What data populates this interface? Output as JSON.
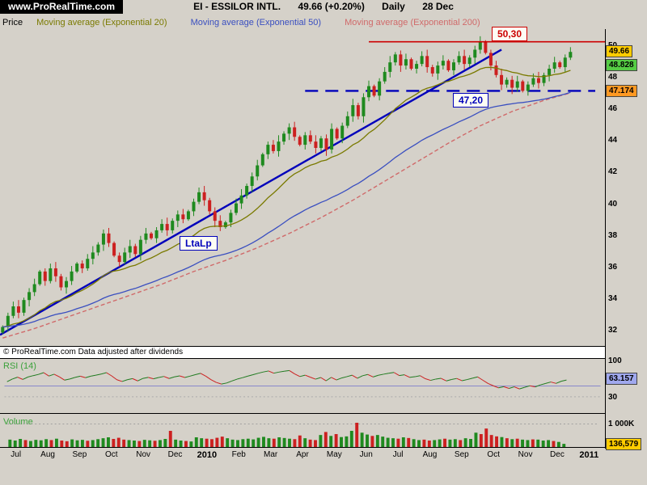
{
  "header": {
    "site": "www.ProRealTime.com",
    "instrument": "EI - ESSILOR INTL.",
    "quote": "49.66 (+0.20%)",
    "timeframe": "Daily",
    "date": "28 Dec"
  },
  "legend": {
    "pane_label": "Price",
    "items": [
      {
        "label": "Moving average (Exponential 20)",
        "color": "#7a7a00"
      },
      {
        "label": "Moving average (Exponential 50)",
        "color": "#3a4fc0"
      },
      {
        "label": "Moving average (Exponential 200)",
        "color": "#d06a6a"
      }
    ]
  },
  "annotations": {
    "resistance": {
      "label": "50,30",
      "color": "#cc0000"
    },
    "support": {
      "label": "47,20",
      "color": "#0000bb"
    },
    "trendline": {
      "label": "LtaLp",
      "color": "#0000bb"
    }
  },
  "copyright": "© ProRealTime.com  Data adjusted after dividends",
  "price_axis": {
    "ticks": [
      50,
      48,
      46,
      44,
      42,
      40,
      38,
      36,
      34,
      32
    ],
    "badges": [
      {
        "text": "49.66",
        "value": 49.66,
        "bg": "#ffcc00"
      },
      {
        "text": "48.828",
        "value": 48.828,
        "bg": "#55cc44"
      },
      {
        "text": "47.174",
        "value": 47.174,
        "bg": "#ff9922"
      }
    ]
  },
  "rsi": {
    "label": "RSI (14)",
    "axis_top": "100",
    "axis_low": "30",
    "badge": {
      "text": "63.157",
      "value": 63.157,
      "bg": "#a0a8ee"
    }
  },
  "volume": {
    "label": "Volume",
    "axis_label": "1 000K",
    "axis_value_k": 1000,
    "badge": {
      "text": "136,579",
      "value_k": 137,
      "bg": "#ffcc00"
    }
  },
  "x_axis": {
    "labels": [
      {
        "text": "Jul"
      },
      {
        "text": "Aug"
      },
      {
        "text": "Sep"
      },
      {
        "text": "Oct"
      },
      {
        "text": "Nov"
      },
      {
        "text": "Dec"
      },
      {
        "text": "2010",
        "bold": true
      },
      {
        "text": "Feb"
      },
      {
        "text": "Mar"
      },
      {
        "text": "Apr"
      },
      {
        "text": "May"
      },
      {
        "text": "Jun"
      },
      {
        "text": "Jul"
      },
      {
        "text": "Aug"
      },
      {
        "text": "Sep"
      },
      {
        "text": "Oct"
      },
      {
        "text": "Nov"
      },
      {
        "text": "Dec"
      },
      {
        "text": "2011",
        "bold": true
      }
    ]
  },
  "chart_data": {
    "type": "candlestick",
    "title": "EI - ESSILOR INTL. Daily, Jul 2009 - Dec 2010",
    "ylabel": "Price",
    "ylim": [
      31.1,
      51.1
    ],
    "candles_per_month": 6,
    "first_open": 31.95,
    "closes": [
      32.3,
      33.0,
      33.6,
      33.2,
      34.0,
      34.5,
      35.0,
      35.8,
      35.2,
      36.0,
      35.5,
      34.8,
      35.2,
      35.8,
      36.3,
      36.0,
      36.6,
      37.0,
      37.5,
      38.2,
      37.6,
      36.8,
      36.4,
      37.0,
      37.4,
      36.9,
      37.8,
      38.2,
      37.9,
      38.4,
      38.8,
      38.4,
      39.0,
      39.4,
      39.1,
      39.6,
      40.2,
      40.8,
      40.3,
      39.6,
      39.0,
      38.6,
      38.9,
      39.5,
      40.1,
      40.6,
      41.2,
      41.8,
      42.5,
      43.2,
      43.8,
      43.4,
      44.0,
      44.5,
      44.9,
      44.3,
      43.8,
      44.4,
      44.0,
      43.6,
      44.2,
      43.5,
      44.8,
      44.2,
      45.0,
      45.6,
      46.3,
      45.6,
      46.8,
      47.5,
      46.9,
      47.8,
      48.4,
      49.0,
      49.5,
      48.8,
      49.2,
      48.6,
      48.9,
      49.4,
      48.7,
      48.3,
      48.8,
      49.1,
      48.5,
      49.0,
      49.4,
      48.9,
      49.3,
      49.8,
      50.3,
      49.6,
      48.8,
      48.2,
      47.6,
      47.9,
      47.4,
      47.8,
      47.2,
      47.6,
      48.0,
      47.7,
      48.2,
      48.6,
      49.0,
      48.7,
      49.3,
      49.66
    ],
    "volumes_k": [
      320,
      280,
      350,
      300,
      260,
      310,
      290,
      340,
      300,
      360,
      280,
      250,
      330,
      290,
      310,
      270,
      300,
      340,
      380,
      420,
      350,
      400,
      320,
      300,
      280,
      260,
      310,
      290,
      270,
      300,
      350,
      700,
      320,
      280,
      260,
      240,
      420,
      380,
      360,
      340,
      400,
      450,
      380,
      320,
      300,
      340,
      360,
      330,
      400,
      440,
      380,
      360,
      420,
      390,
      360,
      340,
      500,
      380,
      320,
      300,
      520,
      650,
      480,
      560,
      430,
      460,
      700,
      1050,
      620,
      540,
      480,
      520,
      450,
      400,
      380,
      360,
      420,
      390,
      340,
      300,
      320,
      280,
      300,
      330,
      360,
      320,
      340,
      300,
      380,
      350,
      620,
      560,
      800,
      520,
      460,
      430,
      380,
      340,
      360,
      320,
      300,
      330,
      320,
      280,
      300,
      260,
      220,
      137
    ],
    "ma200_monthly_anchors": [
      31.6,
      32.2,
      32.9,
      33.6,
      34.3,
      35.0,
      35.8,
      36.5,
      37.3,
      38.2,
      39.2,
      40.3,
      41.5,
      42.7,
      43.9,
      45.0,
      45.9,
      46.6,
      47.17
    ],
    "trendline": {
      "from_index": 0,
      "from_price": 31.8,
      "to_index": 94,
      "to_price": 49.8
    },
    "support_line": {
      "price": 47.2,
      "from_index": 57
    },
    "resistance_line": {
      "price": 50.3,
      "from_index": 69
    },
    "rsi_period": 14,
    "rsi_current": 63.157,
    "volume_current_k": 136.579
  }
}
